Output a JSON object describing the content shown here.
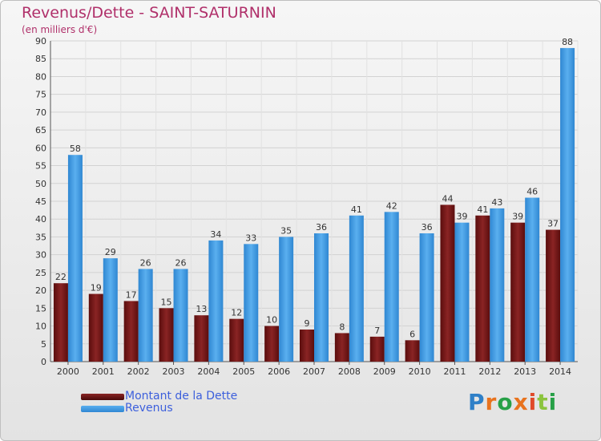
{
  "chart_data": {
    "type": "bar",
    "title": "Revenus/Dette - SAINT-SATURNIN",
    "subtitle": "(en milliers d'€)",
    "categories": [
      "2000",
      "2001",
      "2002",
      "2003",
      "2004",
      "2005",
      "2006",
      "2007",
      "2008",
      "2009",
      "2010",
      "2011",
      "2012",
      "2013",
      "2014"
    ],
    "series": [
      {
        "name": "Montant de la Dette",
        "color": "#7a1a1a",
        "values": [
          22,
          19,
          17,
          15,
          13,
          12,
          10,
          9,
          8,
          7,
          6,
          44,
          41,
          39,
          37
        ]
      },
      {
        "name": "Revenus",
        "color": "#3d9be3",
        "values": [
          58,
          29,
          26,
          26,
          34,
          33,
          35,
          36,
          41,
          42,
          36,
          39,
          43,
          46,
          88
        ]
      }
    ],
    "ylim": [
      0,
      90
    ],
    "yticks": [
      0,
      5,
      10,
      15,
      20,
      25,
      30,
      35,
      40,
      45,
      50,
      55,
      60,
      65,
      70,
      75,
      80,
      85,
      90
    ],
    "grid": true,
    "legend_position": "bottom-left"
  },
  "logo": {
    "text": "Proxiti"
  }
}
